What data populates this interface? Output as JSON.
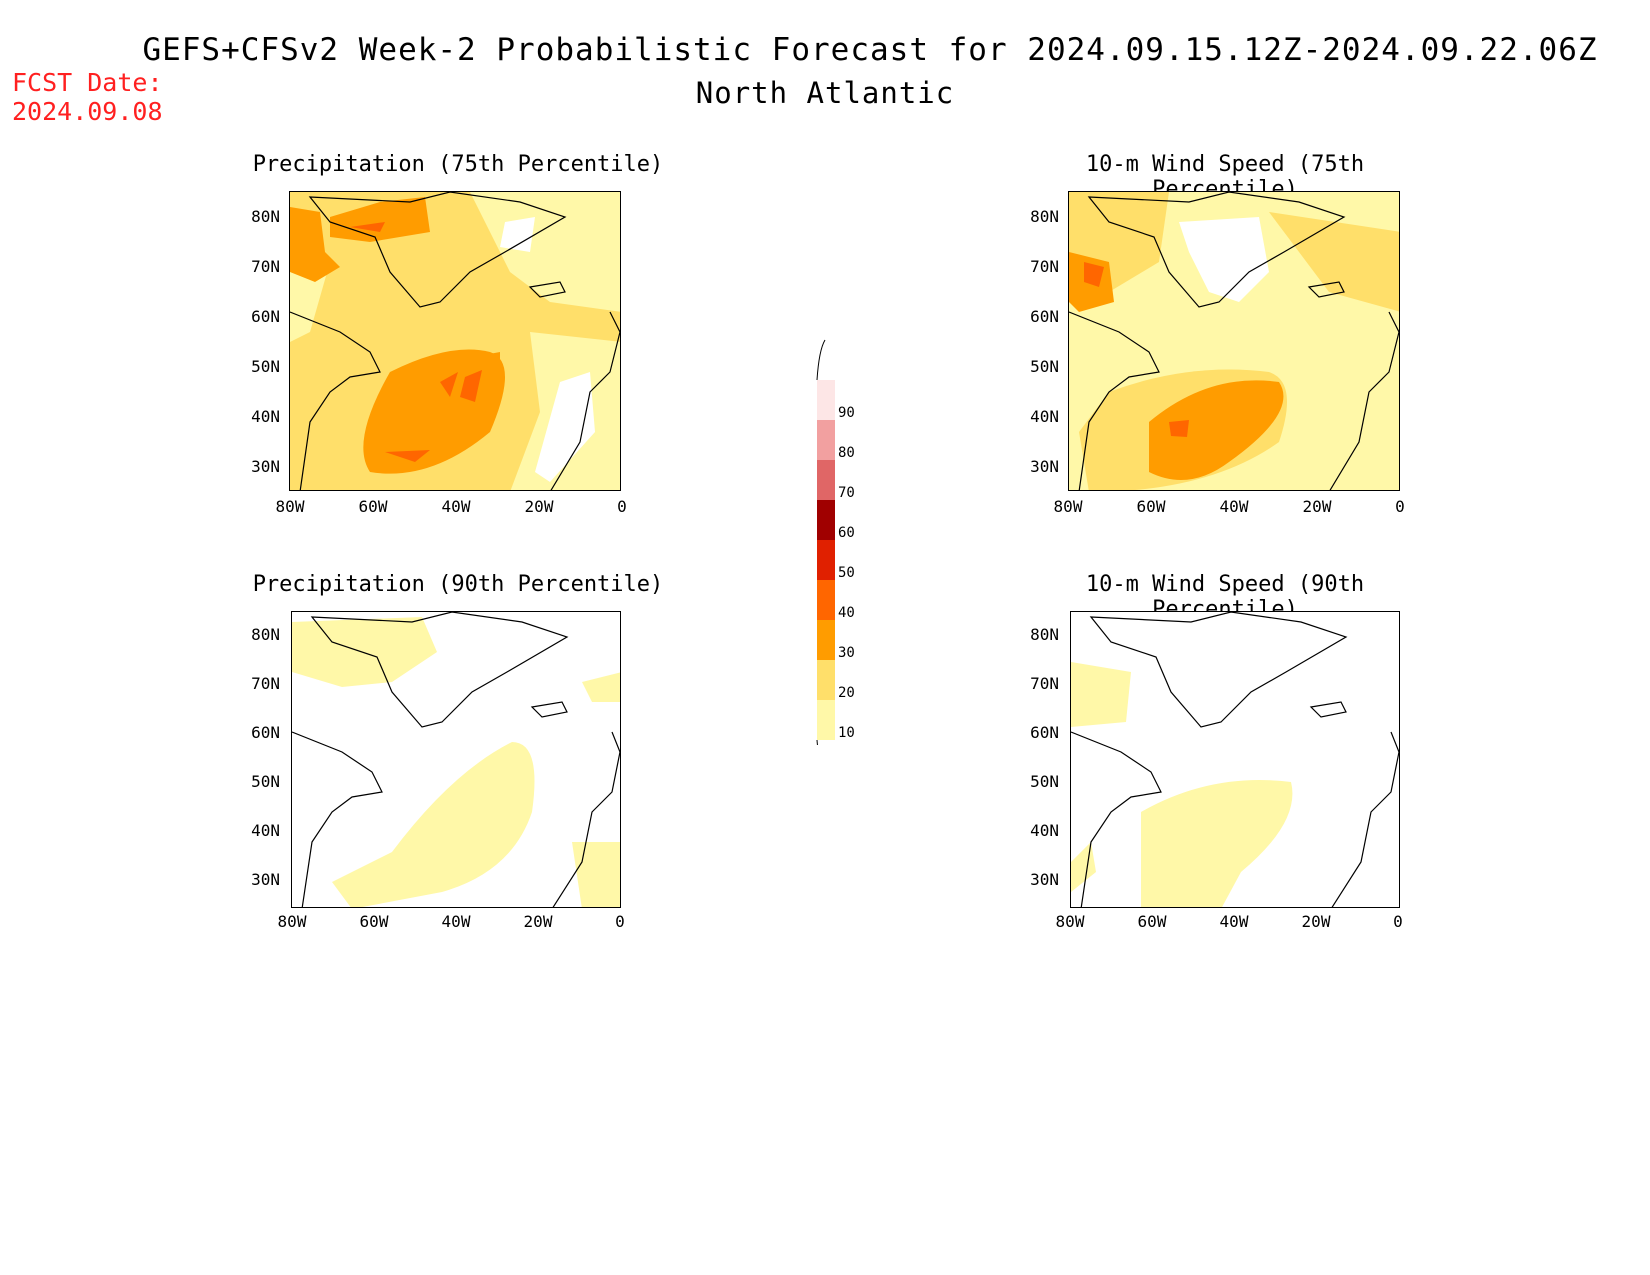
{
  "title": "GEFS+CFSv2 Week-2 Probabilistic Forecast for 2024.09.15.12Z-2024.09.22.06Z",
  "subtitle": "North Atlantic",
  "fcst_label": "FCST Date:",
  "fcst_date": "2024.09.08",
  "panels": [
    {
      "title": "Precipitation (75th Percentile)"
    },
    {
      "title": "10-m Wind Speed (75th Percentile)"
    },
    {
      "title": "Precipitation (90th Percentile)"
    },
    {
      "title": "10-m Wind Speed (90th Percentile)"
    }
  ],
  "lat_ticks": [
    "80N",
    "70N",
    "60N",
    "50N",
    "40N",
    "30N"
  ],
  "lon_ticks": [
    "80W",
    "60W",
    "40W",
    "20W",
    "0"
  ],
  "colorbar": {
    "labels": [
      "90",
      "80",
      "70",
      "60",
      "50",
      "40",
      "30",
      "20",
      "10"
    ],
    "colors": [
      "#fde6e6",
      "#f2a0a0",
      "#e06666",
      "#a00000",
      "#e02000",
      "#ff6600",
      "#ff9c00",
      "#ffdf6a",
      "#fff8a8"
    ]
  }
}
